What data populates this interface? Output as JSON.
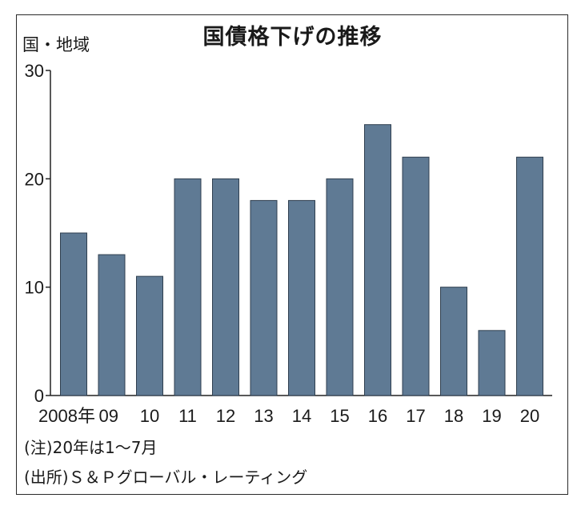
{
  "chart_data": {
    "type": "bar",
    "title": "国債格下げの推移",
    "ylabel": "国・地域",
    "xlabel": "",
    "categories": [
      "2008年",
      "09",
      "10",
      "11",
      "12",
      "13",
      "14",
      "15",
      "16",
      "17",
      "18",
      "19",
      "20"
    ],
    "values": [
      15,
      13,
      11,
      20,
      20,
      18,
      18,
      20,
      25,
      22,
      10,
      6,
      22
    ],
    "ylim": [
      0,
      30
    ],
    "yticks": [
      0,
      10,
      20,
      30
    ],
    "grid": false,
    "bar_color": "#5f7a94"
  },
  "notes": {
    "note1": "(注)20年は1～7月",
    "note2": "(出所)Ｓ＆Ｐグローバル・レーティング"
  }
}
